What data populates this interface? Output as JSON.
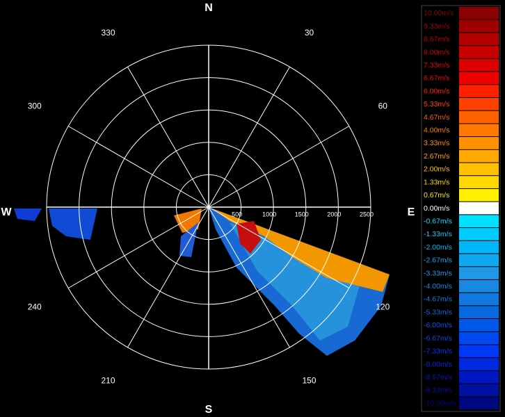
{
  "compass": [
    "N",
    "E",
    "S",
    "W"
  ],
  "angle_labels": [
    "30",
    "60",
    "120",
    "150",
    "210",
    "240",
    "300",
    "330"
  ],
  "range_labels": [
    "500",
    "1000",
    "1500",
    "2000",
    "2500"
  ],
  "legend": {
    "labels": [
      "10.00m/s",
      "9.33m/s",
      "8.67m/s",
      "8.00m/s",
      "7.33m/s",
      "6.67m/s",
      "6.00m/s",
      "5.33m/s",
      "4.67m/s",
      "4.00m/s",
      "3.33m/s",
      "2.67m/s",
      "2.00m/s",
      "1.33m/s",
      "0.67m/s",
      "0.00m/s",
      "-0.67m/s",
      "-1.33m/s",
      "-2.00m/s",
      "-2.67m/s",
      "-3.33m/s",
      "-4.00m/s",
      "-4.67m/s",
      "-5.33m/s",
      "-6.00m/s",
      "-6.67m/s",
      "-7.33m/s",
      "-8.00m/s",
      "-8.67m/s",
      "-9.33m/s",
      "-10.00m/s"
    ],
    "colors": [
      "#8b0000",
      "#a00000",
      "#b40000",
      "#c80000",
      "#dc0000",
      "#f00000",
      "#ff2000",
      "#ff4000",
      "#ff6000",
      "#ff7800",
      "#ff9000",
      "#ffa800",
      "#ffc000",
      "#ffd800",
      "#fff000",
      "#ffffff",
      "#00e0ff",
      "#00ccff",
      "#00b8f8",
      "#10a8f0",
      "#2098e8",
      "#1888e0",
      "#1078e0",
      "#0868e0",
      "#0058e8",
      "#0048f0",
      "#0038f8",
      "#0028e0",
      "#0018c0",
      "#0010a0",
      "#000880"
    ]
  }
}
